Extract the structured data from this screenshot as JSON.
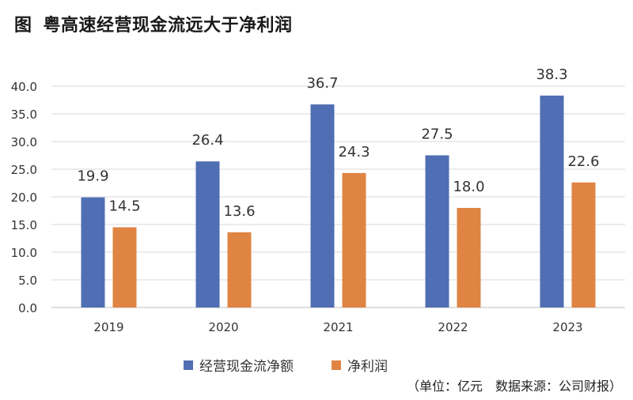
{
  "header": {
    "figure_label": "图",
    "title": "粤高速经营现金流远大于净利润"
  },
  "source_note": "（单位：亿元　数据来源：公司财报）",
  "colors": {
    "series_1": "#4f6eb3",
    "series_2": "#df8443",
    "grid": "#d9d9d9",
    "axis": "#bfbfbf"
  },
  "chart_data": {
    "type": "bar",
    "title": "粤高速经营现金流远大于净利润",
    "categories": [
      "2019",
      "2020",
      "2021",
      "2022",
      "2023"
    ],
    "series": [
      {
        "name": "经营现金流净额",
        "values": [
          19.9,
          26.4,
          36.7,
          27.5,
          38.3
        ]
      },
      {
        "name": "净利润",
        "values": [
          14.5,
          13.6,
          24.3,
          18.0,
          22.6
        ]
      }
    ],
    "ylim": [
      0,
      40
    ],
    "yticks": [
      "0.0",
      "5.0",
      "10.0",
      "15.0",
      "20.0",
      "25.0",
      "30.0",
      "35.0",
      "40.0"
    ],
    "grid": true,
    "legend": "bottom"
  }
}
